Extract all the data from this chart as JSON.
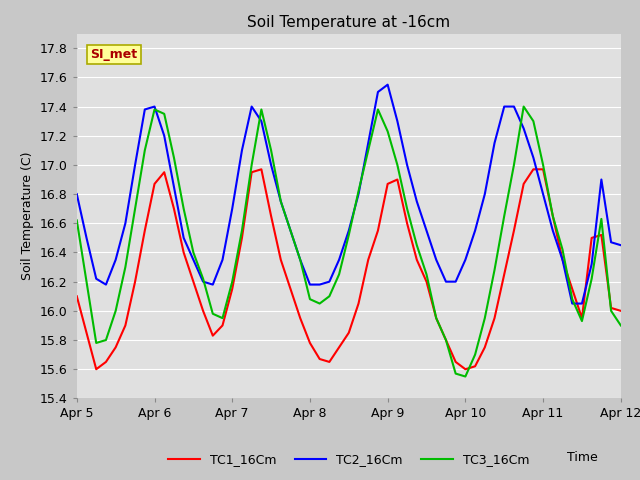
{
  "title": "Soil Temperature at -16cm",
  "ylabel": "Soil Temperature (C)",
  "xlabel": "Time",
  "ylim": [
    15.4,
    17.9
  ],
  "xlim": [
    0,
    14
  ],
  "legend_labels": [
    "TC1_16Cm",
    "TC2_16Cm",
    "TC3_16Cm"
  ],
  "line_colors": [
    "#ff0000",
    "#0000ff",
    "#00bb00"
  ],
  "background_color": "#c8c8c8",
  "plot_bg_color": "#e0e0e0",
  "annotation_text": "SI_met",
  "annotation_color": "#aa0000",
  "annotation_bg": "#ffff99",
  "annotation_border": "#aaaa00",
  "tc1_y": [
    16.1,
    15.85,
    15.6,
    15.65,
    15.75,
    15.9,
    16.2,
    16.55,
    16.87,
    16.95,
    16.7,
    16.4,
    16.2,
    16.0,
    15.83,
    15.9,
    16.15,
    16.5,
    16.95,
    16.97,
    16.65,
    16.35,
    16.15,
    15.95,
    15.78,
    15.67,
    15.65,
    15.75,
    15.85,
    16.05,
    16.35,
    16.55,
    16.87,
    16.9,
    16.6,
    16.35,
    16.2,
    15.95,
    15.8,
    15.65,
    15.6,
    15.62,
    15.75,
    15.95,
    16.25,
    16.55,
    16.87,
    16.97,
    16.97,
    16.65,
    16.35,
    16.15,
    15.95,
    16.5,
    16.52,
    16.02,
    16.0
  ],
  "tc2_y": [
    16.8,
    16.5,
    16.22,
    16.18,
    16.35,
    16.6,
    17.0,
    17.38,
    17.4,
    17.2,
    16.85,
    16.5,
    16.35,
    16.2,
    16.18,
    16.35,
    16.7,
    17.1,
    17.4,
    17.3,
    17.0,
    16.75,
    16.55,
    16.35,
    16.18,
    16.18,
    16.2,
    16.35,
    16.55,
    16.8,
    17.15,
    17.5,
    17.55,
    17.3,
    17.0,
    16.75,
    16.55,
    16.35,
    16.2,
    16.2,
    16.35,
    16.55,
    16.8,
    17.15,
    17.4,
    17.4,
    17.25,
    17.05,
    16.8,
    16.55,
    16.35,
    16.05,
    16.05,
    16.32,
    16.9,
    16.47,
    16.45
  ],
  "tc3_y": [
    16.62,
    16.2,
    15.78,
    15.8,
    16.0,
    16.3,
    16.7,
    17.1,
    17.38,
    17.35,
    17.05,
    16.7,
    16.4,
    16.22,
    15.98,
    15.95,
    16.2,
    16.55,
    17.0,
    17.38,
    17.1,
    16.75,
    16.55,
    16.35,
    16.08,
    16.05,
    16.1,
    16.25,
    16.52,
    16.82,
    17.1,
    17.38,
    17.23,
    17.0,
    16.7,
    16.45,
    16.25,
    15.95,
    15.8,
    15.57,
    15.55,
    15.7,
    15.95,
    16.28,
    16.65,
    17.0,
    17.4,
    17.3,
    17.0,
    16.65,
    16.42,
    16.08,
    15.93,
    16.22,
    16.63,
    16.0,
    15.9
  ],
  "xtick_positions": [
    0,
    2,
    4,
    6,
    8,
    10,
    12,
    14
  ],
  "xtick_labels": [
    "Apr 5",
    "Apr 6",
    "Apr 7",
    "Apr 8",
    "Apr 9",
    "Apr 10",
    "Apr 11",
    "Apr 12"
  ],
  "ytick_positions": [
    15.4,
    15.6,
    15.8,
    16.0,
    16.2,
    16.4,
    16.6,
    16.8,
    17.0,
    17.2,
    17.4,
    17.6,
    17.8
  ],
  "grid_color": "#ffffff",
  "linewidth": 1.5,
  "title_fontsize": 11,
  "axis_fontsize": 9,
  "legend_fontsize": 9
}
